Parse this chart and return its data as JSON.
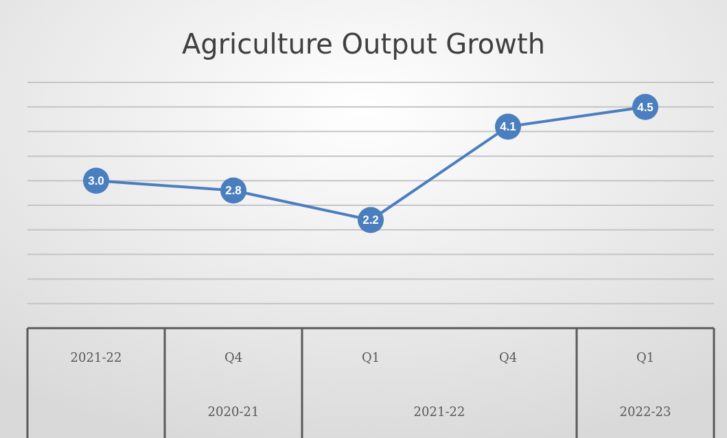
{
  "chart_data": {
    "type": "line",
    "title": "Agriculture Output Growth",
    "categories": [
      "2021-22",
      "Q4",
      "Q1",
      "Q4",
      "Q1"
    ],
    "annotations": [
      "2020-21",
      "2021-22",
      "2022-23"
    ],
    "series": [
      {
        "color": "#4a7ebf",
        "values": [
          3.0,
          2.8,
          2.2,
          4.1,
          4.5
        ],
        "value_labels": [
          "3.0",
          "2.8",
          "2.2",
          "4.1",
          "4.5"
        ]
      }
    ],
    "ylim": [
      0,
      5
    ],
    "yticks": [
      {
        "value": 0.5,
        "label": null
      },
      {
        "value": 1,
        "label": null
      },
      {
        "value": 1.5,
        "label": null
      },
      {
        "value": 2,
        "label": null
      },
      {
        "value": 2.5,
        "label": null
      },
      {
        "value": 3,
        "label": null
      },
      {
        "value": 3.5,
        "label": null
      },
      {
        "value": 4,
        "label": null
      },
      {
        "value": 4.5,
        "label": null
      },
      {
        "value": 5,
        "label": null
      }
    ],
    "tick_labels": "x",
    "grid": "y",
    "marker": "circle"
  }
}
